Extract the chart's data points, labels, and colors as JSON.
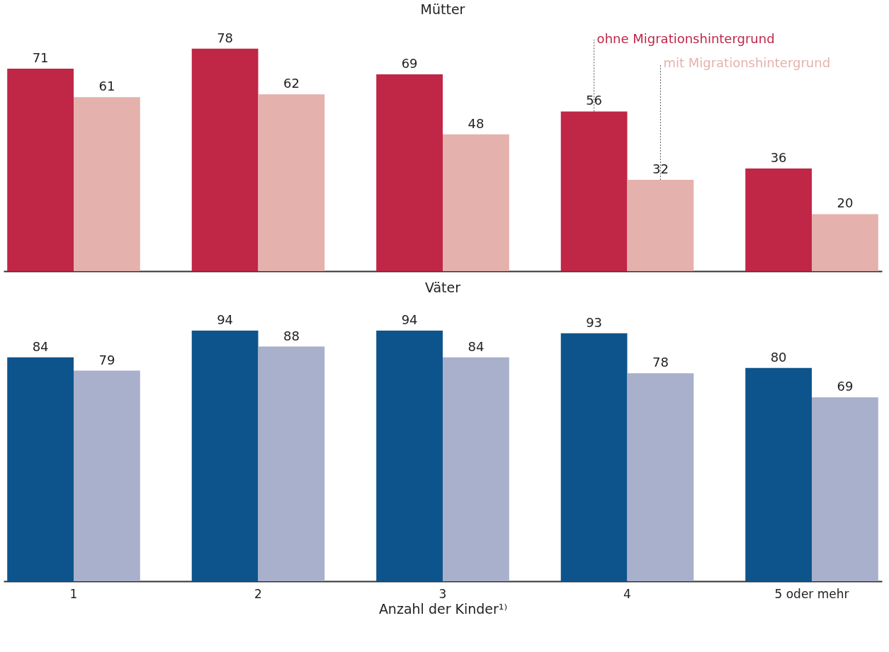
{
  "chart_data": [
    {
      "type": "bar",
      "title": "Mütter",
      "categories": [
        null,
        null,
        null,
        null,
        null
      ],
      "series": [
        {
          "name": "ohne Migrationshintergrund",
          "color": "#c02646",
          "values": [
            71,
            78,
            69,
            56,
            36
          ]
        },
        {
          "name": "mit Migrationshintergrund",
          "color": "#e5b1ad",
          "values": [
            61,
            62,
            48,
            32,
            20
          ]
        }
      ],
      "data_labels": true,
      "legend": "top right",
      "tick_labels": false,
      "grid": false
    },
    {
      "type": "bar",
      "title": "Väter",
      "xlabel": "Anzahl der Kinder¹⁾",
      "categories": [
        "1",
        "2",
        "3",
        "4",
        "5 oder mehr"
      ],
      "series": [
        {
          "color": "#0e548c",
          "values": [
            84,
            94,
            94,
            93,
            80
          ]
        },
        {
          "color": "#a8b0cb",
          "values": [
            79,
            88,
            84,
            78,
            69
          ]
        }
      ],
      "data_labels": true,
      "tick_labels": "x",
      "grid": false
    }
  ]
}
